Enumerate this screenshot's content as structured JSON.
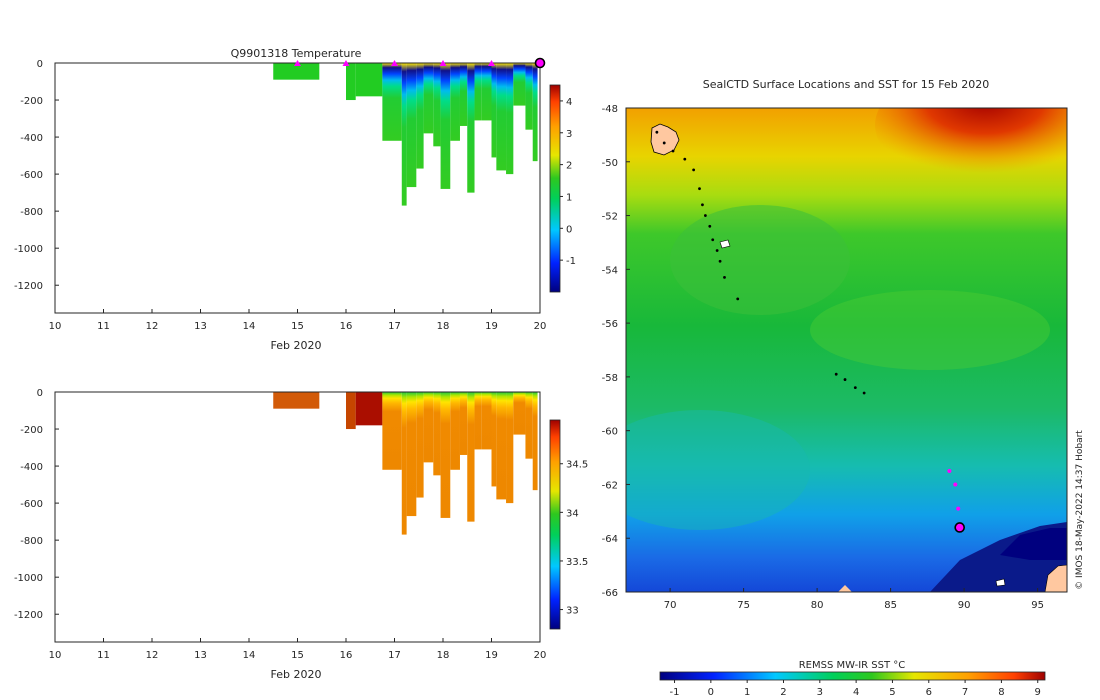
{
  "chart_data": [
    {
      "type": "heatmap",
      "title": "Q9901318  Temperature",
      "xlabel": "Feb 2020",
      "ylabel": "",
      "xlim": [
        10,
        20
      ],
      "ylim": [
        -1350,
        0
      ],
      "xticks": [
        "10",
        "11",
        "12",
        "13",
        "14",
        "15",
        "16",
        "17",
        "18",
        "19",
        "20"
      ],
      "yticks": [
        "0",
        "-200",
        "-400",
        "-600",
        "-800",
        "-1000",
        "-1200"
      ],
      "colorbar": {
        "range": [
          -2,
          4.5
        ],
        "ticks": [
          "-1",
          "0",
          "1",
          "2",
          "3",
          "4"
        ]
      },
      "surface_markers_x": [
        15,
        16,
        17,
        18,
        19,
        20
      ],
      "profiles": [
        {
          "x0": 14.5,
          "x1": 15.45,
          "bottom": -90
        },
        {
          "x0": 16.0,
          "x1": 16.2,
          "bottom": -200
        },
        {
          "x0": 16.2,
          "x1": 16.75,
          "bottom": -180
        },
        {
          "x0": 16.75,
          "x1": 17.0,
          "bottom": -420
        },
        {
          "x0": 17.0,
          "x1": 17.15,
          "bottom": -420
        },
        {
          "x0": 17.15,
          "x1": 17.25,
          "bottom": -770
        },
        {
          "x0": 17.25,
          "x1": 17.45,
          "bottom": -670
        },
        {
          "x0": 17.45,
          "x1": 17.6,
          "bottom": -570
        },
        {
          "x0": 17.6,
          "x1": 17.8,
          "bottom": -380
        },
        {
          "x0": 17.8,
          "x1": 17.95,
          "bottom": -450
        },
        {
          "x0": 17.95,
          "x1": 18.15,
          "bottom": -680
        },
        {
          "x0": 18.15,
          "x1": 18.35,
          "bottom": -420
        },
        {
          "x0": 18.35,
          "x1": 18.5,
          "bottom": -340
        },
        {
          "x0": 18.5,
          "x1": 18.65,
          "bottom": -700
        },
        {
          "x0": 18.65,
          "x1": 18.8,
          "bottom": -310
        },
        {
          "x0": 18.8,
          "x1": 19.0,
          "bottom": -310
        },
        {
          "x0": 19.0,
          "x1": 19.1,
          "bottom": -510
        },
        {
          "x0": 19.1,
          "x1": 19.3,
          "bottom": -580
        },
        {
          "x0": 19.3,
          "x1": 19.45,
          "bottom": -600
        },
        {
          "x0": 19.45,
          "x1": 19.7,
          "bottom": -230
        },
        {
          "x0": 19.7,
          "x1": 19.85,
          "bottom": -360
        },
        {
          "x0": 19.85,
          "x1": 19.95,
          "bottom": -530
        }
      ]
    },
    {
      "type": "heatmap",
      "title": "",
      "xlabel": "Feb 2020",
      "ylabel": "",
      "xlim": [
        10,
        20
      ],
      "ylim": [
        -1350,
        0
      ],
      "xticks": [
        "10",
        "11",
        "12",
        "13",
        "14",
        "15",
        "16",
        "17",
        "18",
        "19",
        "20"
      ],
      "yticks": [
        "0",
        "-200",
        "-400",
        "-600",
        "-800",
        "-1000",
        "-1200"
      ],
      "colorbar": {
        "range": [
          32.8,
          34.95
        ],
        "ticks": [
          "33",
          "33.5",
          "34",
          "34.5"
        ]
      }
    },
    {
      "type": "heatmap",
      "title": "SealCTD Surface Locations and SST for 15 Feb 2020",
      "xlabel": "",
      "ylabel": "",
      "xlim": [
        67,
        97
      ],
      "ylim": [
        -66,
        -48
      ],
      "xticks": [
        "70",
        "75",
        "80",
        "85",
        "90",
        "95"
      ],
      "yticks": [
        "-48",
        "-50",
        "-52",
        "-54",
        "-56",
        "-58",
        "-60",
        "-62",
        "-64",
        "-66"
      ],
      "colorbar": {
        "label": "REMSS MW-IR SST °C",
        "range": [
          -1.4,
          9.2
        ],
        "ticks": [
          "-1",
          "0",
          "1",
          "2",
          "3",
          "4",
          "5",
          "6",
          "7",
          "8",
          "9"
        ]
      },
      "track_lon": [
        69.1,
        69.6,
        70.2,
        71.0,
        71.6,
        72.0,
        72.2,
        72.4,
        72.7,
        72.9,
        73.2,
        73.4,
        73.7,
        74.6,
        81.3,
        81.9,
        82.6,
        83.2
      ],
      "track_lat": [
        -48.9,
        -49.3,
        -49.6,
        -49.9,
        -50.3,
        -51.0,
        -51.6,
        -52.0,
        -52.4,
        -52.9,
        -53.3,
        -53.7,
        -54.3,
        -55.1,
        -57.9,
        -58.1,
        -58.4,
        -58.6
      ],
      "seal_positions_lon": [
        89.0,
        89.4,
        89.6,
        89.7
      ],
      "seal_positions_lat": [
        -61.5,
        -62.0,
        -62.9,
        -63.6
      ],
      "latest_position": {
        "lon": 89.7,
        "lat": -63.6
      }
    }
  ],
  "credit": "© IMOS 18-May-2022 14:37 Hobart"
}
